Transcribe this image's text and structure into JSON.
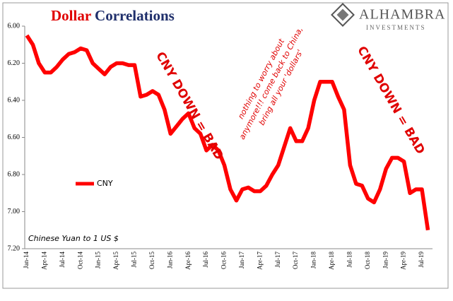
{
  "chart_data": {
    "type": "line",
    "title": [
      "Dollar",
      "Correlations"
    ],
    "title_colors": [
      "#e00000",
      "#1f2f6b"
    ],
    "logo": [
      "ALHAMBRA",
      "INVESTMENTS"
    ],
    "note": "Chinese Yuan to 1 US $",
    "annotations": [
      {
        "text": "CNY DOWN = BAD"
      },
      {
        "lines": [
          "nothing to worry about",
          "anymore!!! come back to China,",
          "bring all your 'dollars'"
        ]
      },
      {
        "text": "CNY DOWN = BAD"
      }
    ],
    "inverted": true,
    "categories": [
      "Jan-14",
      null,
      null,
      "Apr-14",
      null,
      null,
      "Jul-14",
      null,
      null,
      "Oct-14",
      null,
      null,
      "Jan-15",
      null,
      null,
      "Apr-15",
      null,
      null,
      "Jul-15",
      null,
      null,
      "Oct-15",
      null,
      null,
      "Jan-16",
      null,
      null,
      "Apr-16",
      null,
      null,
      "Jul-16",
      null,
      null,
      "Oct-16",
      null,
      null,
      "Jan-17",
      null,
      null,
      "Apr-17",
      null,
      null,
      "Jul-17",
      null,
      null,
      "Oct-17",
      null,
      null,
      "Jan-18",
      null,
      null,
      "Apr-18",
      null,
      null,
      "Jul-18",
      null,
      null,
      "Oct-18",
      null,
      null,
      "Jan-19",
      null,
      null,
      "Apr-19",
      null,
      null,
      "Jul-19",
      null
    ],
    "series": [
      {
        "name": "CNY",
        "color": "#ff0000",
        "values": [
          6.05,
          6.1,
          6.2,
          6.25,
          6.25,
          6.22,
          6.18,
          6.15,
          6.14,
          6.12,
          6.13,
          6.2,
          6.23,
          6.26,
          6.22,
          6.2,
          6.2,
          6.21,
          6.21,
          6.38,
          6.37,
          6.35,
          6.37,
          6.45,
          6.58,
          6.54,
          6.5,
          6.47,
          6.55,
          6.58,
          6.67,
          6.64,
          6.67,
          6.75,
          6.88,
          6.94,
          6.88,
          6.87,
          6.89,
          6.89,
          6.86,
          6.8,
          6.75,
          6.65,
          6.55,
          6.62,
          6.62,
          6.55,
          6.4,
          6.3,
          6.3,
          6.3,
          6.38,
          6.45,
          6.75,
          6.85,
          6.86,
          6.93,
          6.95,
          6.88,
          6.77,
          6.71,
          6.71,
          6.73,
          6.9,
          6.88,
          6.88,
          7.1
        ]
      }
    ],
    "ylim": [
      6.0,
      7.2
    ],
    "yticks": [
      {
        "value": 6.0,
        "label": "6.00"
      },
      {
        "value": 6.2,
        "label": "6.20"
      },
      {
        "value": 6.4,
        "label": "6.40"
      },
      {
        "value": 6.6,
        "label": "6.60"
      },
      {
        "value": 6.8,
        "label": "6.80"
      },
      {
        "value": 7.0,
        "label": "7.00"
      },
      {
        "value": 7.2,
        "label": "7.20"
      }
    ],
    "grid": false
  }
}
